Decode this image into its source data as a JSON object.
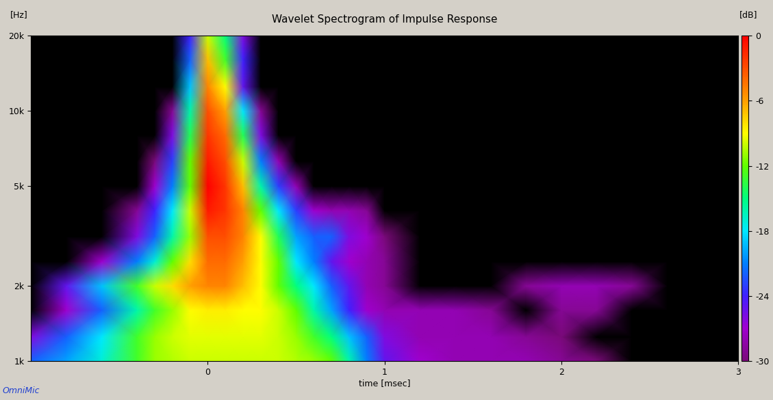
{
  "chart_data": {
    "type": "heatmap",
    "title": "Wavelet Spectrogram of Impulse Response",
    "xlabel": "time [msec]",
    "ylabel": "[Hz]",
    "colorbar_label": "[dB]",
    "annotation": "OmniMic",
    "log": "y",
    "grid": false,
    "x": [
      -1.0,
      -0.8,
      -0.6,
      -0.4,
      -0.3,
      -0.2,
      -0.1,
      0.0,
      0.1,
      0.2,
      0.3,
      0.4,
      0.5,
      0.6,
      0.7,
      0.8,
      0.9,
      1.0,
      1.2,
      1.4,
      1.6,
      1.8,
      2.0,
      2.2,
      2.4,
      2.6,
      3.0
    ],
    "y": [
      1000,
      1250,
      1600,
      2000,
      2500,
      3150,
      4000,
      5000,
      6300,
      8000,
      10000,
      12500,
      16000,
      20000
    ],
    "values": [
      [
        -22,
        -20,
        -17,
        -13,
        -11,
        -10.5,
        -10,
        -10,
        -10,
        -10,
        -10,
        -10,
        -10.5,
        -11,
        -12,
        -16,
        -21,
        -25,
        -27,
        -28,
        -28,
        -28,
        -29,
        -30,
        -34,
        -40,
        -40
      ],
      [
        -26,
        -22,
        -18,
        -13,
        -11,
        -10,
        -9.5,
        -9.5,
        -9.5,
        -9.5,
        -9.5,
        -10,
        -11,
        -13,
        -15,
        -19,
        -22,
        -26,
        -28,
        -28,
        -28,
        -29,
        -30,
        -33,
        -40,
        -40,
        -40
      ],
      [
        -34,
        -27,
        -22,
        -16,
        -13,
        -11,
        -9,
        -8.5,
        -8.5,
        -9,
        -9,
        -10,
        -12,
        -16,
        -20,
        -24,
        -27,
        -28,
        -28,
        -28,
        -29,
        -32,
        -29,
        -29,
        -33,
        -40,
        -40
      ],
      [
        -32,
        -25,
        -19,
        -13,
        -10,
        -8,
        -6,
        -5,
        -5,
        -7,
        -9,
        -12,
        -15,
        -18,
        -22,
        -25,
        -28,
        -29,
        -31,
        -33,
        -34,
        -29,
        -28,
        -28,
        -29,
        -35,
        -40
      ],
      [
        -40,
        -34,
        -27,
        -21,
        -17,
        -12,
        -8,
        -4,
        -4,
        -6,
        -9,
        -12,
        -18,
        -21,
        -25,
        -27,
        -28,
        -29,
        -32,
        -35,
        -40,
        -40,
        -40,
        -40,
        -40,
        -40,
        -40
      ],
      [
        -40,
        -40,
        -33,
        -26,
        -22,
        -16,
        -11,
        -3,
        -3,
        -5,
        -9,
        -14,
        -20,
        -22,
        -22,
        -26,
        -27,
        -30,
        -40,
        -40,
        -40,
        -40,
        -40,
        -40,
        -40,
        -40,
        -40
      ],
      [
        -40,
        -40,
        -35,
        -29,
        -24,
        -18,
        -10,
        -1,
        -2,
        -5,
        -12,
        -18,
        -23,
        -27,
        -28,
        -28,
        -29,
        -31,
        -40,
        -40,
        -40,
        -40,
        -40,
        -40,
        -40,
        -40,
        -40
      ],
      [
        -40,
        -40,
        -40,
        -33,
        -27,
        -21,
        -12,
        0,
        -2,
        -7,
        -16,
        -23,
        -28,
        -33,
        -40,
        -40,
        -40,
        -40,
        -40,
        -40,
        -40,
        -40,
        -40,
        -40,
        -40,
        -40,
        -40
      ],
      [
        -40,
        -40,
        -40,
        -36,
        -30,
        -23,
        -12,
        -1,
        -3,
        -10,
        -21,
        -28,
        -34,
        -40,
        -40,
        -40,
        -40,
        -40,
        -40,
        -40,
        -40,
        -40,
        -40,
        -40,
        -40,
        -40,
        -40
      ],
      [
        -40,
        -40,
        -40,
        -40,
        -33,
        -26,
        -14,
        -2,
        -4,
        -14,
        -26,
        -33,
        -40,
        -40,
        -40,
        -40,
        -40,
        -40,
        -40,
        -40,
        -40,
        -40,
        -40,
        -40,
        -40,
        -40,
        -40
      ],
      [
        -40,
        -40,
        -40,
        -40,
        -37,
        -29,
        -16,
        -3,
        -6,
        -18,
        -29,
        -36,
        -40,
        -40,
        -40,
        -40,
        -40,
        -40,
        -40,
        -40,
        -40,
        -40,
        -40,
        -40,
        -40,
        -40,
        -40
      ],
      [
        -40,
        -40,
        -40,
        -40,
        -40,
        -31,
        -19,
        -5,
        -9,
        -25,
        -31,
        -40,
        -40,
        -40,
        -40,
        -40,
        -40,
        -40,
        -40,
        -40,
        -40,
        -40,
        -40,
        -40,
        -40,
        -40,
        -40
      ],
      [
        -40,
        -40,
        -40,
        -40,
        -40,
        -34,
        -22,
        -7,
        -13,
        -24,
        -32,
        -40,
        -40,
        -40,
        -40,
        -40,
        -40,
        -40,
        -40,
        -40,
        -40,
        -40,
        -40,
        -40,
        -40,
        -40,
        -40
      ],
      [
        -40,
        -40,
        -40,
        -40,
        -40,
        -36,
        -24,
        -10,
        -15,
        -26,
        -34,
        -40,
        -40,
        -40,
        -40,
        -40,
        -40,
        -40,
        -40,
        -40,
        -40,
        -40,
        -40,
        -40,
        -40,
        -40,
        -40
      ]
    ],
    "xlim": [
      -1,
      3
    ],
    "xticks": [
      0,
      1,
      2,
      3
    ],
    "ylim": [
      1000,
      20000
    ],
    "yticks": [
      {
        "value": 1000,
        "label": "1k"
      },
      {
        "value": 2000,
        "label": "2k"
      },
      {
        "value": 5000,
        "label": "5k"
      },
      {
        "value": 10000,
        "label": "10k"
      },
      {
        "value": 20000,
        "label": "20k"
      }
    ],
    "color_range": [
      -30,
      0
    ],
    "color_ticks": [
      0,
      -6,
      -12,
      -18,
      -24,
      -30
    ]
  }
}
